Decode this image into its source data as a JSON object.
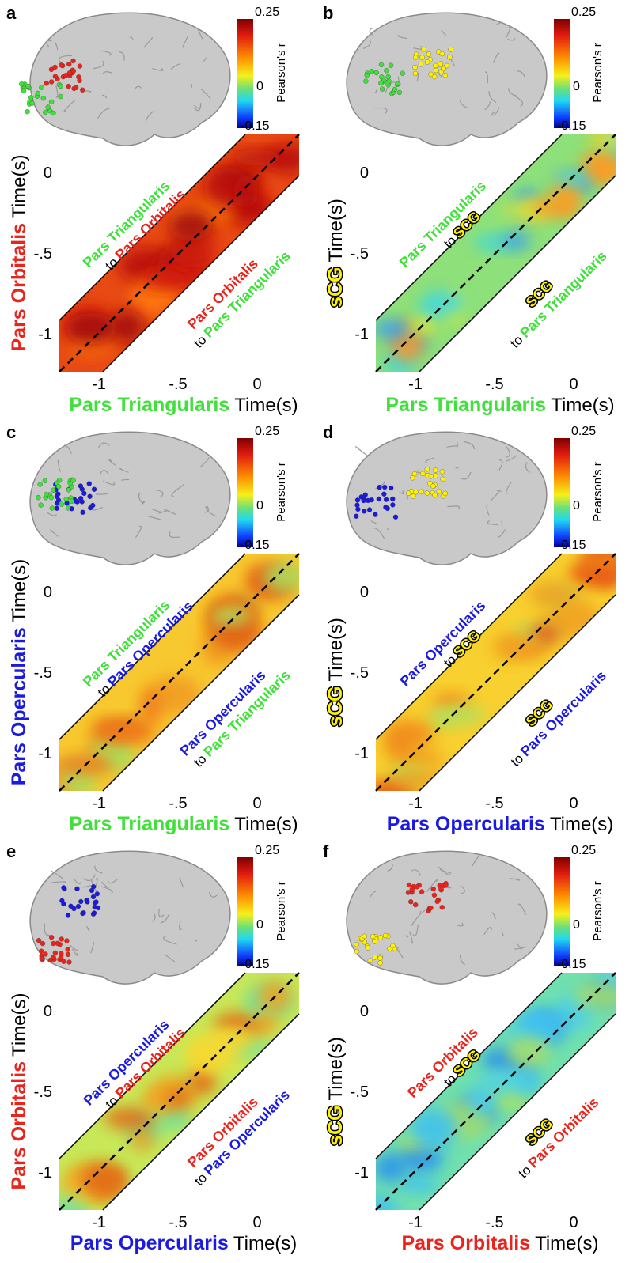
{
  "figure": {
    "panels": [
      {
        "letter": "a",
        "colorbar": {
          "max": "0.25",
          "mid": "0",
          "min": "-0.15",
          "title": "Pearson's r"
        },
        "y_label": {
          "region": {
            "text": "Pars Orbitalis",
            "color": "#e8241c"
          },
          "unit": "Time(s)"
        },
        "x_label": {
          "region": {
            "text": "Pars Triangularis",
            "color": "#3fe03a"
          },
          "unit": "Time(s)"
        },
        "y_ticks": [
          "0",
          "-.5",
          "-1"
        ],
        "x_ticks": [
          "-1",
          "-.5",
          "0"
        ],
        "upper_note": {
          "from": {
            "text": "Pars Triangularis",
            "color": "#3fe03a"
          },
          "word": "to",
          "to": {
            "text": "Pars Orbitalis",
            "color": "#e8241c"
          }
        },
        "lower_note": {
          "from": {
            "text": "Pars Orbitalis",
            "color": "#e8241c"
          },
          "word": "to",
          "to": {
            "text": "Pars Triangularis",
            "color": "#3fe03a"
          }
        }
      },
      {
        "letter": "b",
        "colorbar": {
          "max": "0.25",
          "mid": "0",
          "min": "-0.15",
          "title": "Pearson's r"
        },
        "y_label": {
          "region": {
            "text": "sCG",
            "color": "#fff200",
            "outline": true
          },
          "unit": "Time(s)"
        },
        "x_label": {
          "region": {
            "text": "Pars Triangularis",
            "color": "#3fe03a"
          },
          "unit": "Time(s)"
        },
        "y_ticks": [
          "0",
          "-.5",
          "-1"
        ],
        "x_ticks": [
          "-1",
          "-.5",
          "0"
        ],
        "upper_note": {
          "from": {
            "text": "Pars Triangularis",
            "color": "#3fe03a"
          },
          "word": "to",
          "to": {
            "text": "SCG",
            "color": "#fff200",
            "outline": true
          }
        },
        "lower_note": {
          "from": {
            "text": "SCG",
            "color": "#fff200",
            "outline": true
          },
          "word": "to",
          "to": {
            "text": "Pars Triangularis",
            "color": "#3fe03a"
          }
        }
      },
      {
        "letter": "c",
        "colorbar": {
          "max": "0.25",
          "mid": "0",
          "min": "-0.15",
          "title": "Pearson's r"
        },
        "y_label": {
          "region": {
            "text": "Pars Opercularis",
            "color": "#1a1ae0"
          },
          "unit": "Time(s)"
        },
        "x_label": {
          "region": {
            "text": "Pars Triangularis",
            "color": "#3fe03a"
          },
          "unit": "Time(s)"
        },
        "y_ticks": [
          "0",
          "-.5",
          "-1"
        ],
        "x_ticks": [
          "-1",
          "-.5",
          "0"
        ],
        "upper_note": {
          "from": {
            "text": "Pars Triangularis",
            "color": "#3fe03a"
          },
          "word": "to",
          "to": {
            "text": "Pars Opercularis",
            "color": "#1a1ae0"
          }
        },
        "lower_note": {
          "from": {
            "text": "Pars Opercularis",
            "color": "#1a1ae0"
          },
          "word": "to",
          "to": {
            "text": "Pars Triangularis",
            "color": "#3fe03a"
          }
        }
      },
      {
        "letter": "d",
        "colorbar": {
          "max": "0.25",
          "mid": "0",
          "min": "-0.15",
          "title": "Pearson's r"
        },
        "y_label": {
          "region": {
            "text": "sCG",
            "color": "#fff200",
            "outline": true
          },
          "unit": "Time(s)"
        },
        "x_label": {
          "region": {
            "text": "Pars Opercularis",
            "color": "#1a1ae0"
          },
          "unit": "Time(s)"
        },
        "y_ticks": [
          "0",
          "-.5",
          "-1"
        ],
        "x_ticks": [
          "-1",
          "-.5",
          "0"
        ],
        "upper_note": {
          "from": {
            "text": "Pars Opercularis",
            "color": "#1a1ae0"
          },
          "word": "to",
          "to": {
            "text": "SCG",
            "color": "#fff200",
            "outline": true
          }
        },
        "lower_note": {
          "from": {
            "text": "SCG",
            "color": "#fff200",
            "outline": true
          },
          "word": "to",
          "to": {
            "text": "Pars Opercularis",
            "color": "#1a1ae0"
          }
        }
      },
      {
        "letter": "e",
        "colorbar": {
          "max": "0.25",
          "mid": "0",
          "min": "-0.15",
          "title": "Pearson's r"
        },
        "y_label": {
          "region": {
            "text": "Pars Orbitalis",
            "color": "#e8241c"
          },
          "unit": "Time(s)"
        },
        "x_label": {
          "region": {
            "text": "Pars Opercularis",
            "color": "#1a1ae0"
          },
          "unit": "Time(s)"
        },
        "y_ticks": [
          "0",
          "-.5",
          "-1"
        ],
        "x_ticks": [
          "-1",
          "-.5",
          "0"
        ],
        "upper_note": {
          "from": {
            "text": "Pars Opercularis",
            "color": "#1a1ae0"
          },
          "word": "to",
          "to": {
            "text": "Pars Orbitalis",
            "color": "#e8241c"
          }
        },
        "lower_note": {
          "from": {
            "text": "Pars Orbitalis",
            "color": "#e8241c"
          },
          "word": "to",
          "to": {
            "text": "Pars Opercularis",
            "color": "#1a1ae0"
          }
        }
      },
      {
        "letter": "f",
        "colorbar": {
          "max": "0.25",
          "mid": "0",
          "min": "-0.15",
          "title": "Pearson's r"
        },
        "y_label": {
          "region": {
            "text": "sCG",
            "color": "#fff200",
            "outline": true
          },
          "unit": "Time(s)"
        },
        "x_label": {
          "region": {
            "text": "Pars Orbitalis",
            "color": "#e8241c"
          },
          "unit": "Time(s)"
        },
        "y_ticks": [
          "0",
          "-.5",
          "-1"
        ],
        "x_ticks": [
          "-1",
          "-.5",
          "0"
        ],
        "upper_note": {
          "from": {
            "text": "Pars Orbitalis",
            "color": "#e8241c"
          },
          "word": "to",
          "to": {
            "text": "SCG",
            "color": "#fff200",
            "outline": true
          }
        },
        "lower_note": {
          "from": {
            "text": "SCG",
            "color": "#fff200",
            "outline": true
          },
          "word": "to",
          "to": {
            "text": "Pars Orbitalis",
            "color": "#e8241c"
          }
        }
      }
    ]
  }
}
